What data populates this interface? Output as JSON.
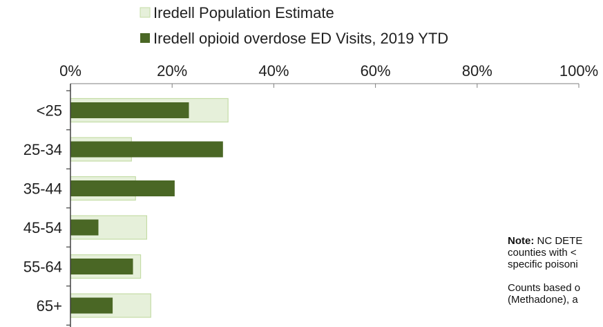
{
  "chart_data": {
    "type": "bar",
    "orientation": "horizontal",
    "categories": [
      "<25",
      "25-34",
      "35-44",
      "45-54",
      "55-64",
      "65+"
    ],
    "series": [
      {
        "name": "Iredell Population Estimate",
        "values": [
          31,
          12,
          12.8,
          15,
          13.8,
          15.8
        ],
        "color": "#e6f0da",
        "border": "#c4dca6"
      },
      {
        "name": "Iredell opioid overdose ED Visits, 2019 YTD",
        "values": [
          23.3,
          30,
          20.5,
          5.5,
          12.3,
          8.3
        ],
        "color": "#4a6725"
      }
    ],
    "x_ticks": [
      "0%",
      "20%",
      "40%",
      "60%",
      "80%",
      "100%"
    ],
    "xlim": [
      0,
      100
    ],
    "legend_position": "top"
  },
  "note": {
    "lines": [
      {
        "bold": "Note:",
        "text": " NC DETE"
      },
      {
        "bold": "",
        "text": "counties with <"
      },
      {
        "bold": "",
        "text": "specific poisoni"
      }
    ],
    "lines2": [
      "Counts based o",
      "(Methadone), a"
    ]
  }
}
